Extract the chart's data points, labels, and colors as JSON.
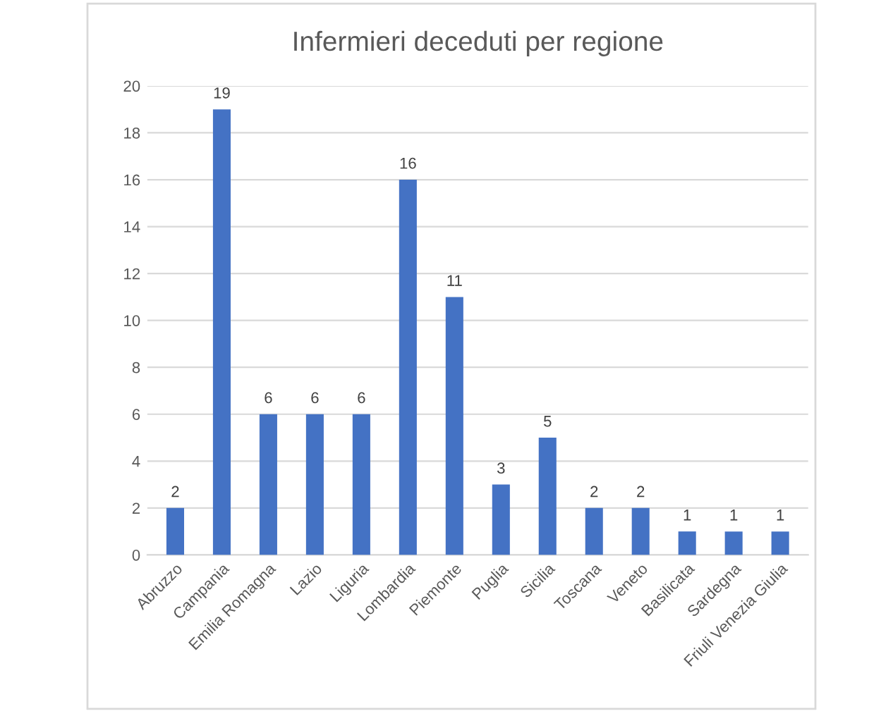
{
  "chart_data": {
    "type": "bar",
    "title": "Infermieri deceduti per regione",
    "categories": [
      "Abruzzo",
      "Campania",
      "Emilia Romagna",
      "Lazio",
      "Liguria",
      "Lombardia",
      "Piemonte",
      "Puglia",
      "Sicilia",
      "Toscana",
      "Veneto",
      "Basilicata",
      "Sardegna",
      "Friuli Venezia Giulia"
    ],
    "values": [
      2,
      19,
      6,
      6,
      6,
      16,
      11,
      3,
      5,
      2,
      2,
      1,
      1,
      1
    ],
    "color": "#4472c4",
    "ylim": [
      0,
      20
    ],
    "yticks": [
      0,
      2,
      4,
      6,
      8,
      10,
      12,
      14,
      16,
      18,
      20
    ],
    "grid": "y",
    "data_labels": true
  }
}
